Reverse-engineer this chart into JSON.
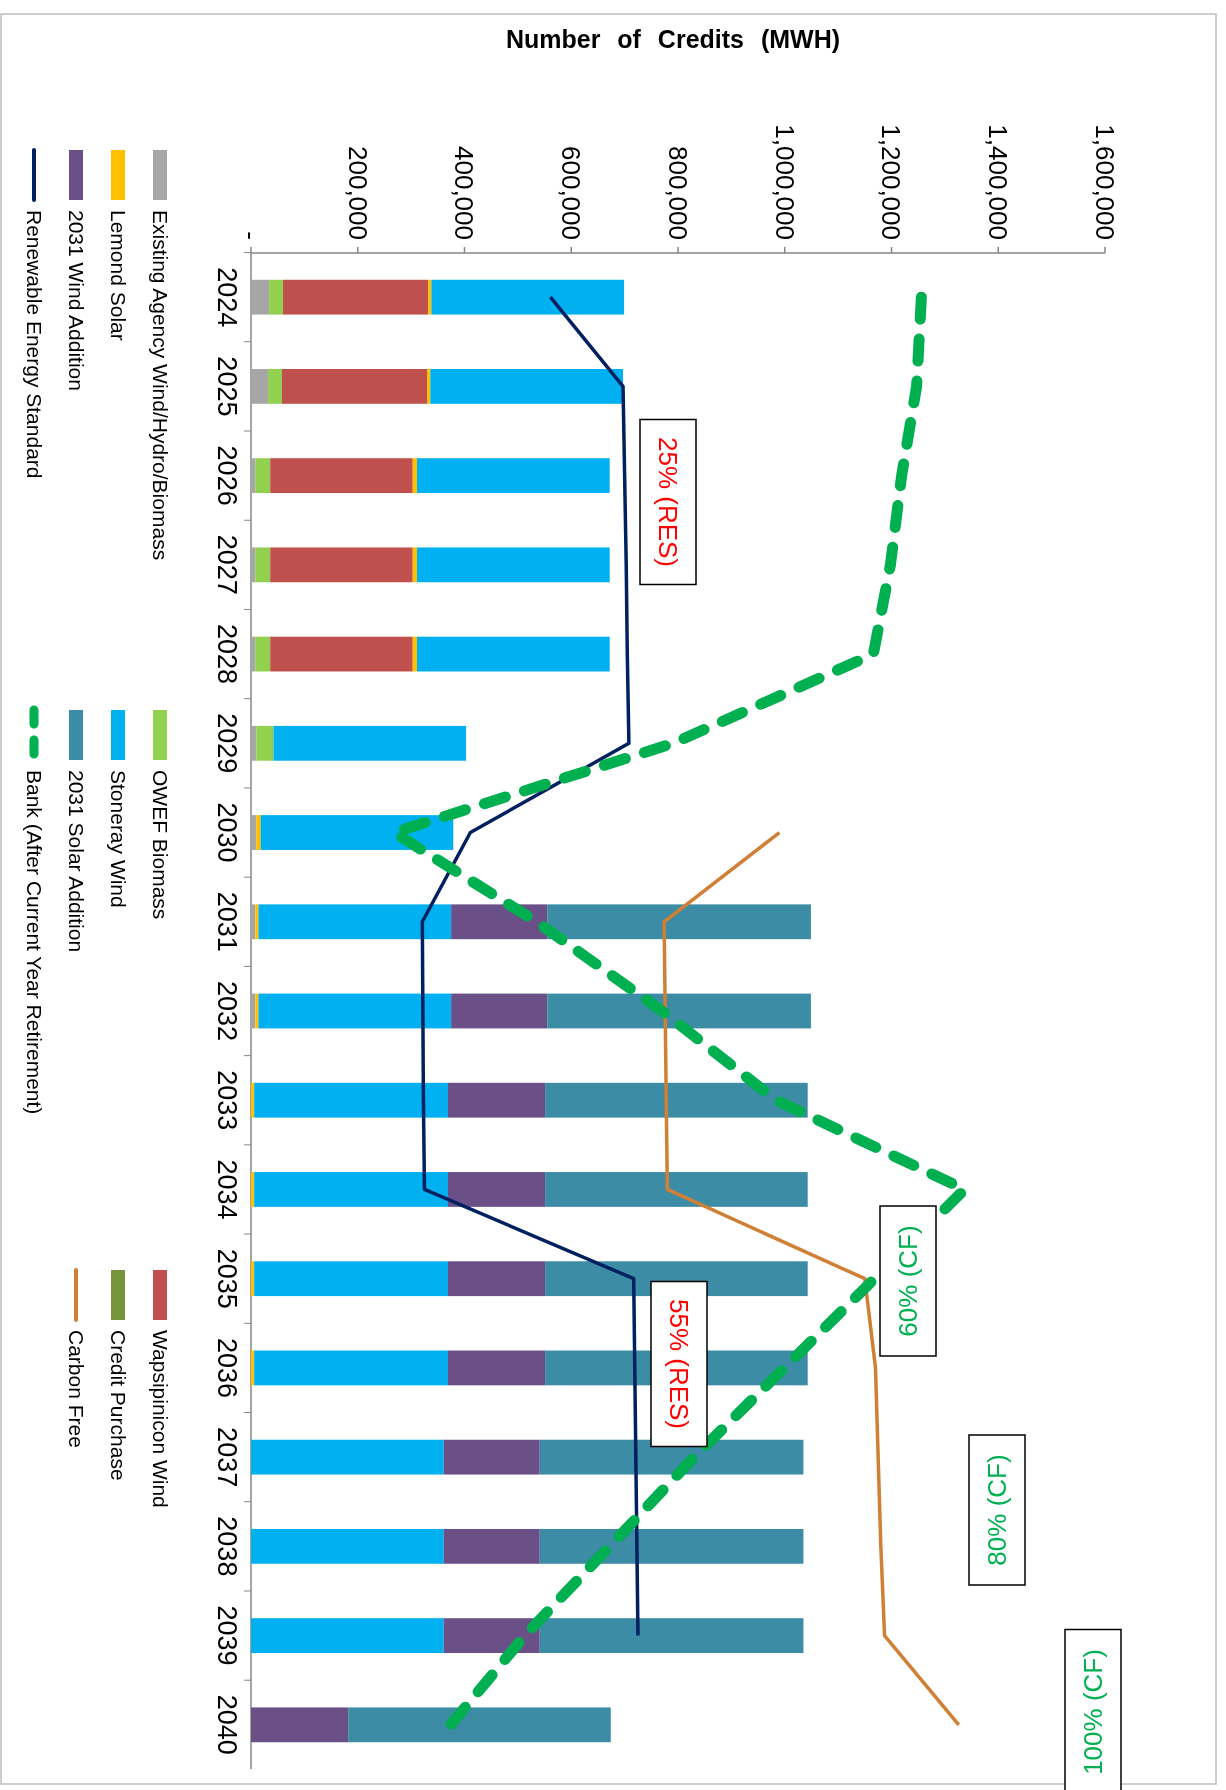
{
  "chart_data": {
    "type": "bar",
    "stacked": true,
    "orientation": "horizontal",
    "xlabel": "Number of Credits (MWH)",
    "categories": [
      "2024",
      "2025",
      "2026",
      "2027",
      "2028",
      "2029",
      "2030",
      "2031",
      "2032",
      "2033",
      "2034",
      "2035",
      "2036",
      "2037",
      "2038",
      "2039",
      "2040"
    ],
    "xlim": [
      0,
      1600000
    ],
    "xticks": [
      {
        "value": 0,
        "label": "-"
      },
      {
        "value": 200000,
        "label": "200,000"
      },
      {
        "value": 400000,
        "label": "400,000"
      },
      {
        "value": 600000,
        "label": "600,000"
      },
      {
        "value": 800000,
        "label": "800,000"
      },
      {
        "value": 1000000,
        "label": "1,000,000"
      },
      {
        "value": 1200000,
        "label": "1,200,000"
      },
      {
        "value": 1400000,
        "label": "1,400,000"
      },
      {
        "value": 1600000,
        "label": "1,600,000"
      }
    ],
    "legend": "left",
    "marker": "none",
    "series": [
      {
        "name": "Existing Agency Wind/Hydro/Biomass",
        "color": "#a6a6a6",
        "values": [
          34000,
          32000,
          8000,
          8000,
          8000,
          10000,
          10000,
          8000,
          8000,
          null,
          null,
          null,
          null,
          null,
          null,
          null,
          null
        ]
      },
      {
        "name": "OWEF Biomass",
        "color": "#92d050",
        "values": [
          26000,
          26000,
          28000,
          28000,
          28000,
          32000,
          null,
          null,
          null,
          null,
          null,
          null,
          null,
          null,
          null,
          null,
          null
        ]
      },
      {
        "name": "Wapsipinicon Wind",
        "color": "#c0504d",
        "values": [
          272000,
          272000,
          267000,
          267000,
          267000,
          null,
          null,
          null,
          null,
          null,
          null,
          null,
          null,
          null,
          null,
          null,
          null
        ]
      },
      {
        "name": "Lemond Solar",
        "color": "#ffc000",
        "values": [
          6000,
          6000,
          8000,
          8000,
          8000,
          null,
          8000,
          6000,
          6000,
          6000,
          6000,
          6000,
          6000,
          null,
          null,
          null,
          null
        ]
      },
      {
        "name": "Stoneray Wind",
        "color": "#00b0f0",
        "values": [
          361000,
          361000,
          361000,
          361000,
          361000,
          361000,
          361000,
          361000,
          361000,
          363000,
          363000,
          363000,
          363000,
          361000,
          361000,
          361000,
          null
        ]
      },
      {
        "name": "Credit Purchase",
        "color": "#77933c",
        "values": [
          null,
          null,
          null,
          null,
          null,
          null,
          null,
          null,
          null,
          null,
          null,
          null,
          null,
          null,
          null,
          null,
          null
        ]
      },
      {
        "name": "2031 Wind Addition",
        "color": "#6a5087",
        "values": [
          null,
          null,
          null,
          null,
          null,
          null,
          null,
          180000,
          180000,
          182000,
          182000,
          182000,
          182000,
          180000,
          180000,
          180000,
          182000
        ]
      },
      {
        "name": "2031 Solar Addition",
        "color": "#3c8ca5",
        "values": [
          null,
          null,
          null,
          null,
          null,
          null,
          null,
          494000,
          494000,
          492000,
          492000,
          492000,
          492000,
          494000,
          494000,
          494000,
          492000
        ]
      },
      {
        "name": "Carbon Free",
        "type": "line",
        "color": "#d07f35",
        "line_style": "solid",
        "values": [
          null,
          null,
          null,
          null,
          null,
          null,
          990000,
          774000,
          776000,
          778000,
          780000,
          1150000,
          1170000,
          1175000,
          1180000,
          1187000,
          1326000
        ]
      },
      {
        "name": "Renewable Energy Standard",
        "type": "line",
        "color": "#002060",
        "line_style": "solid",
        "values": [
          561000,
          697000,
          700000,
          703000,
          705000,
          708000,
          411000,
          321000,
          322000,
          323000,
          325000,
          717000,
          719000,
          721000,
          723000,
          725000,
          null
        ]
      },
      {
        "name": "Bank  (After Current Year Retirement)",
        "type": "line",
        "color": "#00b050",
        "line_style": "dashed",
        "values": [
          1256000,
          1247000,
          1219000,
          1198000,
          1166000,
          791000,
          268000,
          535000,
          770000,
          984000,
          1337000,
          1168000,
          999000,
          830000,
          672000,
          513000,
          374000
        ]
      }
    ],
    "annotations": [
      "25% (RES)",
      "55% (RES)",
      "60% (CF)",
      "80% (CF)",
      "100% (CF)"
    ]
  }
}
